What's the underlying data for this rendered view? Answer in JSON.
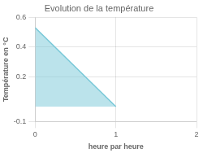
{
  "chart_data": {
    "type": "area",
    "title": "Evolution de la température",
    "xlabel": "heure par heure",
    "ylabel": "Température en °C",
    "x": [
      0,
      1
    ],
    "values": [
      0.53,
      0
    ],
    "color": "#78c8d8",
    "xlim": [
      0,
      2
    ],
    "ylim": [
      -0.1,
      0.6
    ],
    "xticks": [
      0,
      1,
      2
    ],
    "yticks": [
      -0.1,
      0.2,
      0.4,
      0.6
    ],
    "grid": true
  }
}
